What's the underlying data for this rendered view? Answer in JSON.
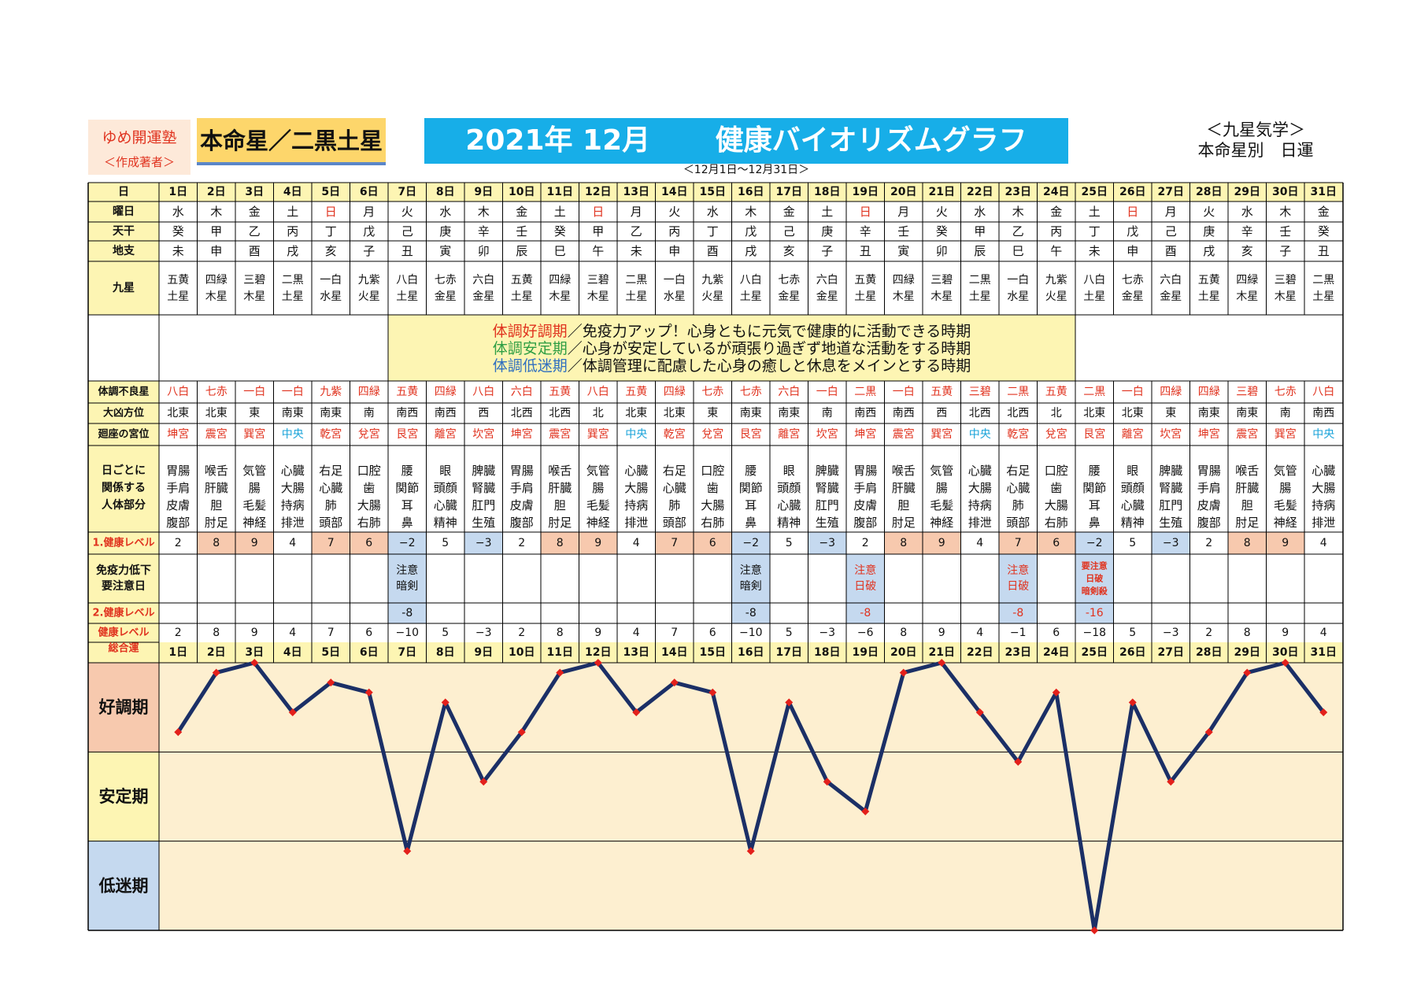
{
  "header": {
    "brand": "ゆめ開運塾",
    "brand_sub": "＜作成著者＞",
    "honmei": "本命星／二黒土星",
    "title_date": "2021年 12月",
    "title_main": "健康バイオリズムグラフ",
    "subtitle": "＜12月1日～12月31日＞",
    "kyusei_1": "＜九星気学＞",
    "kyusei_2": "本命星別　日運"
  },
  "row_labels": {
    "day": "日",
    "weekday": "曜日",
    "tenkan": "天干",
    "chishi": "地支",
    "kyusei": "九星",
    "furyo": "体調不良星",
    "daikyo": "大凶方位",
    "kaiza": "廻座の宮位",
    "body": [
      "日ごとに",
      "関係する",
      "人体部分"
    ],
    "level1": "1.健康レベル",
    "caution": [
      "免疫力低下",
      "要注意日"
    ],
    "level2": "2.健康レベル",
    "total": [
      "健康レベル",
      "総合運"
    ]
  },
  "legend": [
    {
      "term": "体調好調期",
      "text": "／免疫力アップ！心身ともに元気で健康的に活動できる時期",
      "color": "#e0331f"
    },
    {
      "term": "体調安定期",
      "text": "／心身が安定しているが頑張り過ぎず地道な活動をする時期",
      "color": "#2e9e44"
    },
    {
      "term": "体調低迷期",
      "text": "／体調管理に配慮した心身の癒しと休息をメインとする時期",
      "color": "#2f6fbf"
    }
  ],
  "days": [
    "1日",
    "2日",
    "3日",
    "4日",
    "5日",
    "6日",
    "7日",
    "8日",
    "9日",
    "10日",
    "11日",
    "12日",
    "13日",
    "14日",
    "15日",
    "16日",
    "17日",
    "18日",
    "19日",
    "20日",
    "21日",
    "22日",
    "23日",
    "24日",
    "25日",
    "26日",
    "27日",
    "28日",
    "29日",
    "30日",
    "31日"
  ],
  "weekdays": [
    "水",
    "木",
    "金",
    "土",
    "日",
    "月",
    "火",
    "水",
    "木",
    "金",
    "土",
    "日",
    "月",
    "火",
    "水",
    "木",
    "金",
    "土",
    "日",
    "月",
    "火",
    "水",
    "木",
    "金",
    "土",
    "日",
    "月",
    "火",
    "水",
    "木",
    "金"
  ],
  "tenkan": [
    "癸",
    "甲",
    "乙",
    "丙",
    "丁",
    "戊",
    "己",
    "庚",
    "辛",
    "壬",
    "癸",
    "甲",
    "乙",
    "丙",
    "丁",
    "戊",
    "己",
    "庚",
    "辛",
    "壬",
    "癸",
    "甲",
    "乙",
    "丙",
    "丁",
    "戊",
    "己",
    "庚",
    "辛",
    "壬",
    "癸"
  ],
  "chishi": [
    "未",
    "申",
    "酉",
    "戌",
    "亥",
    "子",
    "丑",
    "寅",
    "卯",
    "辰",
    "巳",
    "午",
    "未",
    "申",
    "酉",
    "戌",
    "亥",
    "子",
    "丑",
    "寅",
    "卯",
    "辰",
    "巳",
    "午",
    "未",
    "申",
    "酉",
    "戌",
    "亥",
    "子",
    "丑"
  ],
  "kyusei": [
    [
      "五黄",
      "土星"
    ],
    [
      "四緑",
      "木星"
    ],
    [
      "三碧",
      "木星"
    ],
    [
      "二黒",
      "土星"
    ],
    [
      "一白",
      "水星"
    ],
    [
      "九紫",
      "火星"
    ],
    [
      "八白",
      "土星"
    ],
    [
      "七赤",
      "金星"
    ],
    [
      "六白",
      "金星"
    ],
    [
      "五黄",
      "土星"
    ],
    [
      "四緑",
      "木星"
    ],
    [
      "三碧",
      "木星"
    ],
    [
      "二黒",
      "土星"
    ],
    [
      "一白",
      "水星"
    ],
    [
      "九紫",
      "火星"
    ],
    [
      "八白",
      "土星"
    ],
    [
      "七赤",
      "金星"
    ],
    [
      "六白",
      "金星"
    ],
    [
      "五黄",
      "土星"
    ],
    [
      "四緑",
      "木星"
    ],
    [
      "三碧",
      "木星"
    ],
    [
      "二黒",
      "土星"
    ],
    [
      "一白",
      "水星"
    ],
    [
      "九紫",
      "火星"
    ],
    [
      "八白",
      "土星"
    ],
    [
      "七赤",
      "金星"
    ],
    [
      "六白",
      "金星"
    ],
    [
      "五黄",
      "土星"
    ],
    [
      "四緑",
      "木星"
    ],
    [
      "三碧",
      "木星"
    ],
    [
      "二黒",
      "土星"
    ]
  ],
  "furyo": [
    "八白",
    "七赤",
    "一白",
    "一白",
    "九紫",
    "四緑",
    "五黄",
    "四緑",
    "八白",
    "六白",
    "五黄",
    "八白",
    "五黄",
    "四緑",
    "七赤",
    "七赤",
    "六白",
    "一白",
    "二黒",
    "一白",
    "五黄",
    "三碧",
    "二黒",
    "五黄",
    "二黒",
    "一白",
    "四緑",
    "四緑",
    "三碧",
    "七赤",
    "八白"
  ],
  "daikyo": [
    "北東",
    "北東",
    "東",
    "南東",
    "南東",
    "南",
    "南西",
    "南西",
    "西",
    "北西",
    "北西",
    "北",
    "北東",
    "北東",
    "東",
    "南東",
    "南東",
    "南",
    "南西",
    "南西",
    "西",
    "北西",
    "北西",
    "北",
    "北東",
    "北東",
    "東",
    "南東",
    "南東",
    "南",
    "南西"
  ],
  "kaiza": [
    "坤宮",
    "震宮",
    "巽宮",
    "中央",
    "乾宮",
    "兌宮",
    "艮宮",
    "離宮",
    "坎宮",
    "坤宮",
    "震宮",
    "巽宮",
    "中央",
    "乾宮",
    "兌宮",
    "艮宮",
    "離宮",
    "坎宮",
    "坤宮",
    "震宮",
    "巽宮",
    "中央",
    "乾宮",
    "兌宮",
    "艮宮",
    "離宮",
    "坎宮",
    "坤宮",
    "震宮",
    "巽宮",
    "中央"
  ],
  "body": [
    [
      "胃腸",
      "手肩",
      "皮膚",
      "腹部"
    ],
    [
      "喉舌",
      "肝臓",
      "胆",
      "肘足"
    ],
    [
      "気管",
      "腸",
      "毛髪",
      "神経"
    ],
    [
      "心臓",
      "大腸",
      "持病",
      "排泄"
    ],
    [
      "右足",
      "心臓",
      "肺",
      "頭部"
    ],
    [
      "口腔",
      "歯",
      "大腸",
      "右肺"
    ],
    [
      "腰",
      "関節",
      "耳",
      "鼻"
    ],
    [
      "眼",
      "頭顔",
      "心臓",
      "精神"
    ],
    [
      "脾臓",
      "腎臓",
      "肛門",
      "生殖"
    ],
    [
      "胃腸",
      "手肩",
      "皮膚",
      "腹部"
    ],
    [
      "喉舌",
      "肝臓",
      "胆",
      "肘足"
    ],
    [
      "気管",
      "腸",
      "毛髪",
      "神経"
    ],
    [
      "心臓",
      "大腸",
      "持病",
      "排泄"
    ],
    [
      "右足",
      "心臓",
      "肺",
      "頭部"
    ],
    [
      "口腔",
      "歯",
      "大腸",
      "右肺"
    ],
    [
      "腰",
      "関節",
      "耳",
      "鼻"
    ],
    [
      "眼",
      "頭顔",
      "心臓",
      "精神"
    ],
    [
      "脾臓",
      "腎臓",
      "肛門",
      "生殖"
    ],
    [
      "胃腸",
      "手肩",
      "皮膚",
      "腹部"
    ],
    [
      "喉舌",
      "肝臓",
      "胆",
      "肘足"
    ],
    [
      "気管",
      "腸",
      "毛髪",
      "神経"
    ],
    [
      "心臓",
      "大腸",
      "持病",
      "排泄"
    ],
    [
      "右足",
      "心臓",
      "肺",
      "頭部"
    ],
    [
      "口腔",
      "歯",
      "大腸",
      "右肺"
    ],
    [
      "腰",
      "関節",
      "耳",
      "鼻"
    ],
    [
      "眼",
      "頭顔",
      "心臓",
      "精神"
    ],
    [
      "脾臓",
      "腎臓",
      "肛門",
      "生殖"
    ],
    [
      "胃腸",
      "手肩",
      "皮膚",
      "腹部"
    ],
    [
      "喉舌",
      "肝臓",
      "胆",
      "肘足"
    ],
    [
      "気管",
      "腸",
      "毛髪",
      "神経"
    ],
    [
      "心臓",
      "大腸",
      "持病",
      "排泄"
    ]
  ],
  "level1": [
    "2",
    "8",
    "9",
    "4",
    "7",
    "6",
    "−2",
    "5",
    "−3",
    "2",
    "8",
    "9",
    "4",
    "7",
    "6",
    "−2",
    "5",
    "−3",
    "2",
    "8",
    "9",
    "4",
    "7",
    "6",
    "−2",
    "5",
    "−3",
    "2",
    "8",
    "9",
    "4"
  ],
  "caution": [
    [],
    [],
    [],
    [],
    [],
    [],
    [
      "注意",
      "暗剣"
    ],
    [],
    [],
    [],
    [],
    [],
    [],
    [],
    [],
    [
      "注意",
      "暗剣"
    ],
    [],
    [],
    [
      "注意",
      "日破"
    ],
    [],
    [],
    [],
    [
      "注意",
      "日破"
    ],
    [],
    [
      "要注意",
      "日破",
      "暗剣殺"
    ],
    [],
    [],
    [],
    [],
    [],
    []
  ],
  "level2": [
    "",
    "",
    "",
    "",
    "",
    "",
    "-8",
    "",
    "",
    "",
    "",
    "",
    "",
    "",
    "",
    "-8",
    "",
    "",
    "-8",
    "",
    "",
    "",
    "-8",
    "",
    "-16",
    "",
    "",
    "",
    "",
    "",
    ""
  ],
  "colors": {
    "frame": "#000000",
    "label_bg": "#fdf5b3",
    "legend_bg": "#fdf5b3",
    "good_bg": "#f7c9ae",
    "poor_bg": "#c5d9ef",
    "plot_bg": "#fdefd0",
    "line": "#1b2f66",
    "marker": "#e3201b",
    "red": "#e0331f",
    "blue": "#1aa3d9"
  },
  "chart_data": {
    "type": "line",
    "categories": [
      "1日",
      "2日",
      "3日",
      "4日",
      "5日",
      "6日",
      "7日",
      "8日",
      "9日",
      "10日",
      "11日",
      "12日",
      "13日",
      "14日",
      "15日",
      "16日",
      "17日",
      "18日",
      "19日",
      "20日",
      "21日",
      "22日",
      "23日",
      "24日",
      "25日",
      "26日",
      "27日",
      "28日",
      "29日",
      "30日",
      "31日"
    ],
    "values": [
      2,
      8,
      9,
      4,
      7,
      6,
      -10,
      5,
      -3,
      2,
      8,
      9,
      4,
      7,
      6,
      -10,
      5,
      -3,
      -6,
      8,
      9,
      4,
      -1,
      6,
      -18,
      5,
      -3,
      2,
      8,
      9,
      4
    ],
    "total_labels": [
      "2",
      "8",
      "9",
      "4",
      "7",
      "6",
      "−10",
      "5",
      "−3",
      "2",
      "8",
      "9",
      "4",
      "7",
      "6",
      "−10",
      "5",
      "−3",
      "−6",
      "8",
      "9",
      "4",
      "−1",
      "6",
      "−18",
      "5",
      "−3",
      "2",
      "8",
      "9",
      "4"
    ],
    "bands": [
      "好調期",
      "安定期",
      "低迷期"
    ],
    "ylim": [
      -18,
      9
    ]
  }
}
